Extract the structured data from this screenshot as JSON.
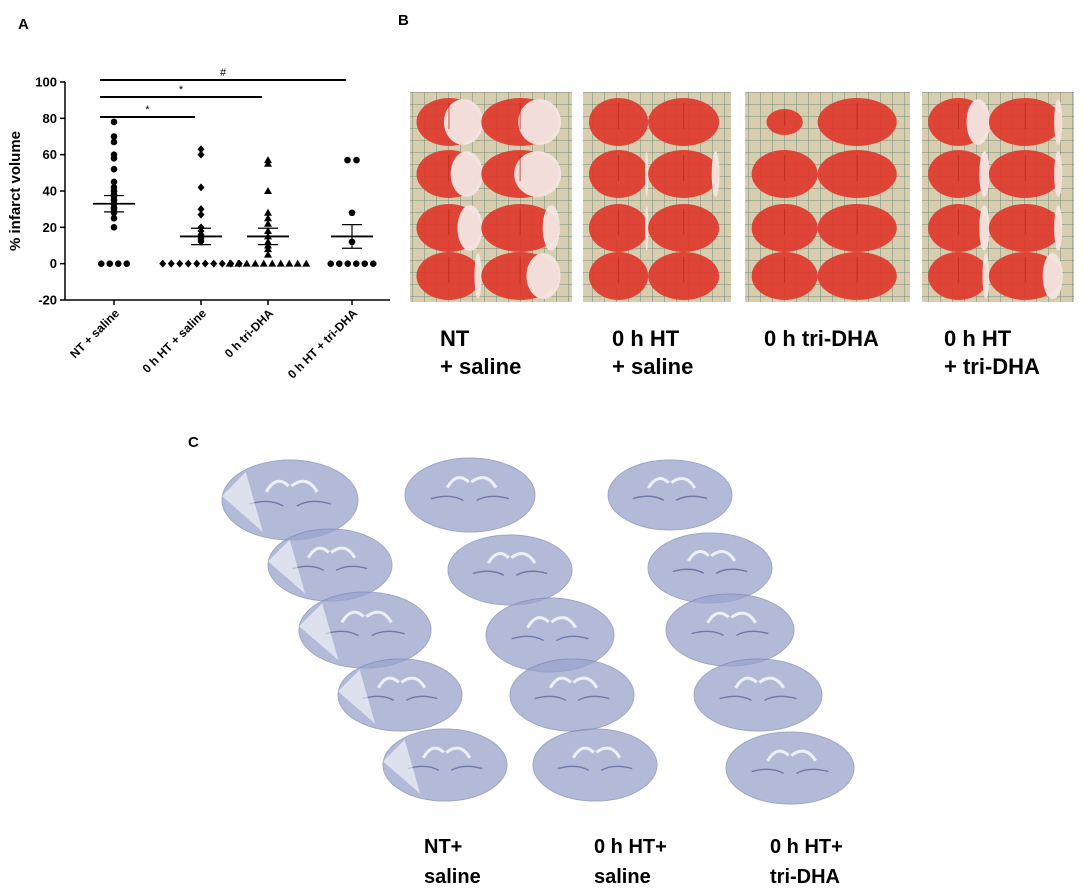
{
  "panels": {
    "a": "A",
    "b": "B",
    "c": "C"
  },
  "chart_data": {
    "type": "scatter",
    "ylabel": "% infarct volume",
    "xlabel": "",
    "ylim": [
      -20,
      100
    ],
    "yticks": [
      -20,
      0,
      20,
      40,
      60,
      80,
      100
    ],
    "categories": [
      "NT + saline",
      "0 h HT + saline",
      "0 h tri-DHA",
      "0 h HT + tri-DHA"
    ],
    "markers": [
      "circle",
      "diamond",
      "triangle",
      "circle"
    ],
    "series": [
      {
        "values": [
          78,
          70,
          67,
          60,
          58,
          52,
          45,
          42,
          40,
          38,
          37,
          35,
          33,
          31,
          30,
          28,
          25,
          20,
          0,
          0,
          0,
          0
        ],
        "mean": 33,
        "sem": 4.5
      },
      {
        "values": [
          63,
          60,
          42,
          30,
          27,
          20,
          18,
          16,
          15,
          14,
          13,
          12,
          0,
          0,
          0,
          0,
          0,
          0,
          0,
          0,
          0,
          0
        ],
        "mean": 15,
        "sem": 4.5
      },
      {
        "values": [
          57,
          55,
          40,
          28,
          25,
          22,
          18,
          15,
          12,
          10,
          8,
          5,
          0,
          0,
          0,
          0,
          0,
          0,
          0,
          0,
          0,
          0
        ],
        "mean": 15,
        "sem": 4.5
      },
      {
        "values": [
          57,
          57,
          28,
          12,
          0,
          0,
          0,
          0,
          0,
          0
        ],
        "mean": 15,
        "sem": 6.5
      }
    ],
    "significance": [
      {
        "from": 0,
        "to": 1,
        "label": "*"
      },
      {
        "from": 0,
        "to": 2,
        "label": "*"
      },
      {
        "from": 0,
        "to": 3,
        "label": "#"
      }
    ]
  },
  "panel_b": {
    "labels": [
      "NT\n+ saline",
      "0 h HT\n+ saline",
      "0 h tri-DHA",
      "0 h HT\n+ tri-DHA"
    ]
  },
  "panel_c": {
    "labels": [
      "NT+\nsaline",
      "0 h HT+\nsaline",
      "0 h HT+\ntri-DHA"
    ]
  },
  "colors": {
    "stain_red": "#e03a2c",
    "grid_bg": "#d9cdb0",
    "nissl": "#9aa4cc",
    "nissl_bg": "#f6f6fa"
  }
}
